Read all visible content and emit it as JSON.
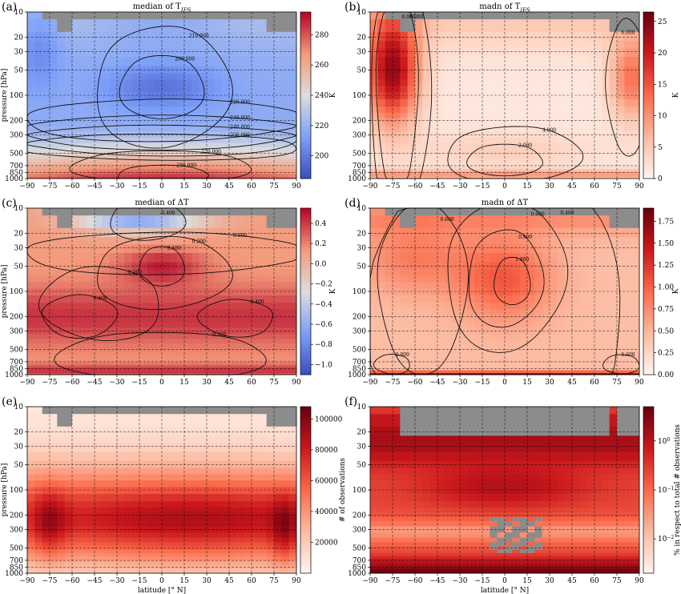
{
  "chart_data": [
    {
      "type": "heatmap",
      "panel_label": "(a)",
      "title": "median of T",
      "title_sub": "IFS",
      "ylabel": "pressure [hPa]",
      "xlabel": "",
      "colorbar_label": "K",
      "cmap": "coolwarm",
      "vrange": [
        185,
        295
      ],
      "colorbar_ticks": [
        "200",
        "220",
        "240",
        "260",
        "280"
      ],
      "field": "temperature",
      "contours": [
        {
          "label": "200.000",
          "cx": 0,
          "cy": 80,
          "wx": 28,
          "hy": 0.4
        },
        {
          "label": "210.000",
          "cx": 0,
          "cy": 80,
          "wx": 45,
          "hy": 0.75
        },
        {
          "label": "220.000",
          "cx": 0,
          "cy": 200,
          "wx": 95,
          "hy": 0.25
        },
        {
          "label": "230.000",
          "cx": 0,
          "cy": 280,
          "wx": 95,
          "hy": 0.2
        },
        {
          "label": "240.000",
          "cx": 0,
          "cy": 350,
          "wx": 95,
          "hy": 0.18
        },
        {
          "label": "250.000",
          "cx": 0,
          "cy": 420,
          "wx": 95,
          "hy": 0.16
        },
        {
          "label": "270.000",
          "cx": 0,
          "cy": 720,
          "wx": 60,
          "hy": 0.2
        },
        {
          "label": "290.000",
          "cx": 0,
          "cy": 900,
          "wx": 30,
          "hy": 0.12
        }
      ]
    },
    {
      "type": "heatmap",
      "panel_label": "(b)",
      "title": "madn of T",
      "title_sub": "IFS",
      "ylabel": "",
      "xlabel": "",
      "colorbar_label": "K",
      "cmap": "reds",
      "vrange": [
        0,
        26.5
      ],
      "colorbar_ticks": [
        "0",
        "5",
        "10",
        "15",
        "20",
        "25"
      ],
      "field": "madn_t",
      "contours": [
        {
          "label": "2.000",
          "cx": 0,
          "cy": 600,
          "wx": 25,
          "hy": 0.2
        },
        {
          "label": "4.000",
          "cx": 5,
          "cy": 520,
          "wx": 45,
          "hy": 0.35
        },
        {
          "label": "6.000",
          "cx": -70,
          "cy": 100,
          "wx": 20,
          "hy": 1.5
        },
        {
          "label": "8.000",
          "cx": -72,
          "cy": 90,
          "wx": 14,
          "hy": 1.2
        },
        {
          "label": "6.000",
          "cx": 82,
          "cy": 80,
          "wx": 14,
          "hy": 0.8
        }
      ]
    },
    {
      "type": "heatmap",
      "panel_label": "(c)",
      "title": "median of ΔT",
      "title_sub": "",
      "ylabel": "pressure [hPa]",
      "xlabel": "",
      "colorbar_label": "K",
      "cmap": "coolwarm",
      "vrange": [
        -1.1,
        0.55
      ],
      "colorbar_ticks": [
        "−1.0",
        "−0.8",
        "−0.6",
        "−0.4",
        "−0.2",
        "0.0",
        "0.2",
        "0.4"
      ],
      "field": "median_dt",
      "contours": [
        {
          "label": "0.400",
          "cx": 0,
          "cy": 50,
          "wx": 15,
          "hy": 0.25
        },
        {
          "label": "0.200",
          "cx": 0,
          "cy": 60,
          "wx": 45,
          "hy": 0.45
        },
        {
          "label": "0.000",
          "cx": 0,
          "cy": 35,
          "wx": 95,
          "hy": 0.25
        },
        {
          "label": "0.400",
          "cx": -55,
          "cy": 200,
          "wx": 25,
          "hy": 0.25
        },
        {
          "label": "0.400",
          "cx": 50,
          "cy": 210,
          "wx": 25,
          "hy": 0.22
        },
        {
          "label": "0.200",
          "cx": -40,
          "cy": 140,
          "wx": 40,
          "hy": 0.45
        },
        {
          "label": "0.200",
          "cx": 0,
          "cy": 600,
          "wx": 70,
          "hy": 0.3
        },
        {
          "label": "-0.400",
          "cx": -10,
          "cy": 14,
          "wx": 25,
          "hy": 0.25
        }
      ]
    },
    {
      "type": "heatmap",
      "panel_label": "(d)",
      "title": "madn of ΔT",
      "title_sub": "",
      "ylabel": "",
      "xlabel": "",
      "colorbar_label": "K",
      "cmap": "reds",
      "vrange": [
        0,
        1.9
      ],
      "colorbar_ticks": [
        "0.00",
        "0.25",
        "0.50",
        "0.75",
        "1.00",
        "1.25",
        "1.50",
        "1.75"
      ],
      "field": "madn_dt",
      "contours": [
        {
          "label": "1.000",
          "cx": 5,
          "cy": 75,
          "wx": 12,
          "hy": 0.3
        },
        {
          "label": "0.800",
          "cx": 0,
          "cy": 70,
          "wx": 25,
          "hy": 0.6
        },
        {
          "label": "0.600",
          "cx": 0,
          "cy": 65,
          "wx": 40,
          "hy": 0.9
        },
        {
          "label": "0.600",
          "cx": -55,
          "cy": 90,
          "wx": 30,
          "hy": 1.0
        },
        {
          "label": "0.400",
          "cx": -5,
          "cy": 300,
          "wx": 85,
          "hy": 2.2
        },
        {
          "label": "0.800",
          "cx": -75,
          "cy": 750,
          "wx": 12,
          "hy": 0.12
        },
        {
          "label": "0.600",
          "cx": 78,
          "cy": 750,
          "wx": 12,
          "hy": 0.12
        }
      ]
    },
    {
      "type": "heatmap",
      "panel_label": "(e)",
      "title": "",
      "title_sub": "",
      "ylabel": "pressure [hPa]",
      "xlabel": "latitude [° N]",
      "colorbar_label": "# of observations",
      "cmap": "reds",
      "vrange": [
        0,
        108000
      ],
      "colorbar_ticks": [
        "20000",
        "40000",
        "60000",
        "80000",
        "100000"
      ],
      "field": "obs_count",
      "contours": []
    },
    {
      "type": "heatmap",
      "panel_label": "(f)",
      "title": "",
      "title_sub": "",
      "ylabel": "",
      "xlabel": "latitude [° N]",
      "colorbar_label": "% in respect to total # observations",
      "cmap": "reds",
      "vrange": [
        0.002,
        5
      ],
      "colorbar_log": true,
      "colorbar_ticks": [
        "10",
        "10",
        "10"
      ],
      "colorbar_tick_exponents": [
        "0",
        "−1",
        "−2"
      ],
      "colorbar_tick_values": [
        1,
        0.1,
        0.01
      ],
      "field": "obs_percent",
      "contours": []
    }
  ],
  "axes": {
    "x_ticks": [
      -90,
      -75,
      -60,
      -45,
      -30,
      -15,
      0,
      15,
      30,
      45,
      60,
      75,
      90
    ],
    "x_tick_labels": [
      "−90",
      "−75",
      "−60",
      "−45",
      "−30",
      "−15",
      "0",
      "15",
      "30",
      "45",
      "60",
      "75",
      "90"
    ],
    "x_gridlines": [
      -75,
      -60,
      -45,
      -30,
      -15,
      0,
      15,
      30,
      45,
      60,
      75
    ],
    "y_ticks": [
      10,
      20,
      30,
      50,
      100,
      200,
      300,
      500,
      700,
      850,
      1000
    ],
    "y_tick_labels": [
      "10",
      "20",
      "30",
      "50",
      "100",
      "200",
      "300",
      "500",
      "700",
      "850",
      "1000"
    ],
    "xlim": [
      -90,
      90
    ],
    "ylim": [
      1000,
      10
    ],
    "y_scale": "log",
    "grid": true,
    "missing_color": "#8c8c8c"
  }
}
